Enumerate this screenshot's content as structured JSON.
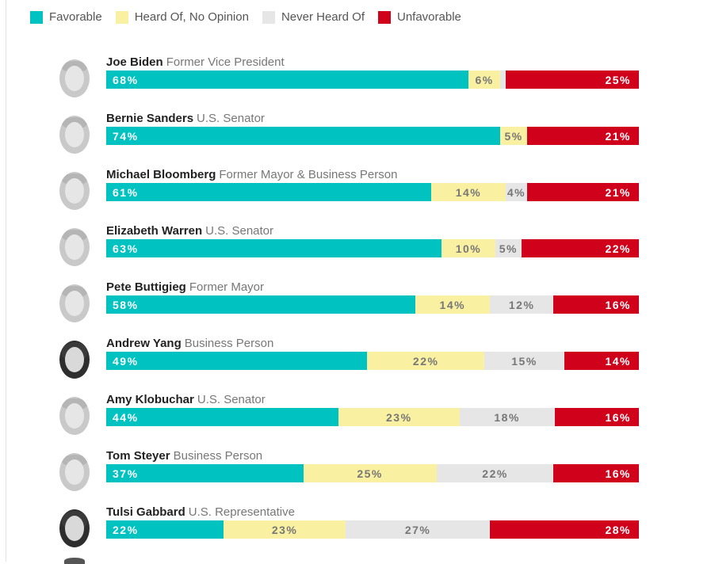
{
  "legend": [
    {
      "label": "Favorable",
      "color": "#00c2c1"
    },
    {
      "label": "Heard Of, No Opinion",
      "color": "#f9f0a1"
    },
    {
      "label": "Never Heard Of",
      "color": "#e6e6e6"
    },
    {
      "label": "Unfavorable",
      "color": "#d0021b"
    }
  ],
  "chart_data": {
    "type": "bar",
    "orientation": "horizontal",
    "stacked": true,
    "unit": "%",
    "categories": [
      "Joe Biden",
      "Bernie Sanders",
      "Michael Bloomberg",
      "Elizabeth Warren",
      "Pete Buttigieg",
      "Andrew Yang",
      "Amy Klobuchar",
      "Tom Steyer",
      "Tulsi Gabbard"
    ],
    "roles": [
      "Former Vice President",
      "U.S. Senator",
      "Former Mayor & Business Person",
      "U.S. Senator",
      "Former Mayor",
      "Business Person",
      "U.S. Senator",
      "Business Person",
      "U.S. Representative"
    ],
    "series": [
      {
        "name": "Favorable",
        "color": "#00c2c1",
        "label_color": "#ffffff",
        "values": [
          68,
          74,
          61,
          63,
          58,
          49,
          44,
          37,
          22
        ]
      },
      {
        "name": "Heard Of, No Opinion",
        "color": "#f9f0a1",
        "label_color": "#777777",
        "values": [
          6,
          5,
          14,
          10,
          14,
          22,
          23,
          25,
          23
        ]
      },
      {
        "name": "Never Heard Of",
        "color": "#e6e6e6",
        "label_color": "#777777",
        "values": [
          1,
          0,
          4,
          5,
          12,
          15,
          18,
          22,
          27
        ]
      },
      {
        "name": "Unfavorable",
        "color": "#d0021b",
        "label_color": "#ffffff",
        "values": [
          25,
          21,
          21,
          22,
          16,
          14,
          16,
          16,
          28
        ]
      }
    ],
    "labels": [
      [
        "68%",
        "6%",
        "",
        "25%"
      ],
      [
        "74%",
        "5%",
        "",
        "21%"
      ],
      [
        "61%",
        "14%",
        "4%",
        "21%"
      ],
      [
        "63%",
        "10%",
        "5%",
        "22%"
      ],
      [
        "58%",
        "14%",
        "12%",
        "16%"
      ],
      [
        "49%",
        "22%",
        "15%",
        "14%"
      ],
      [
        "44%",
        "23%",
        "18%",
        "16%"
      ],
      [
        "37%",
        "25%",
        "22%",
        "16%"
      ],
      [
        "22%",
        "23%",
        "27%",
        "28%"
      ]
    ],
    "xlim": [
      0,
      100
    ]
  }
}
